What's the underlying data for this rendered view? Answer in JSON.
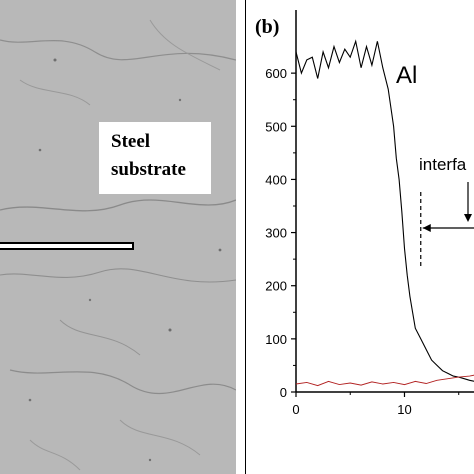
{
  "micrograph": {
    "label_line1": "Steel",
    "label_line2": "substrate"
  },
  "chart_data": {
    "type": "line",
    "panel_label": "(b)",
    "title": "",
    "xlabel": "",
    "ylabel": "",
    "xlim": [
      0,
      16.5
    ],
    "ylim": [
      0,
      700
    ],
    "x_ticks": [
      0,
      10
    ],
    "y_ticks": [
      0,
      100,
      200,
      300,
      400,
      500,
      600
    ],
    "series": [
      {
        "name": "Al",
        "color": "#000000",
        "x": [
          0,
          0.5,
          1,
          1.5,
          2,
          2.5,
          3,
          3.5,
          4,
          4.5,
          5,
          5.5,
          6,
          6.5,
          7,
          7.5,
          8,
          8.5,
          9,
          9.25,
          9.5,
          9.75,
          10,
          10.25,
          10.5,
          10.75,
          11,
          11.5,
          12,
          12.5,
          13,
          13.5,
          14,
          14.5,
          15,
          15.5,
          16,
          16.5
        ],
        "y": [
          640,
          600,
          625,
          630,
          590,
          640,
          610,
          650,
          620,
          645,
          630,
          660,
          610,
          650,
          615,
          660,
          610,
          570,
          500,
          440,
          400,
          340,
          270,
          220,
          180,
          150,
          120,
          100,
          80,
          60,
          50,
          40,
          35,
          30,
          28,
          25,
          22,
          20
        ]
      },
      {
        "name": "",
        "color": "#b22222",
        "x": [
          0,
          1,
          2,
          3,
          4,
          5,
          6,
          7,
          8,
          9,
          10,
          11,
          12,
          13,
          14,
          15,
          16,
          16.5
        ],
        "y": [
          15,
          18,
          12,
          20,
          14,
          17,
          13,
          19,
          15,
          18,
          14,
          20,
          16,
          22,
          25,
          28,
          30,
          32
        ]
      }
    ],
    "annotations": [
      "interfa"
    ]
  }
}
